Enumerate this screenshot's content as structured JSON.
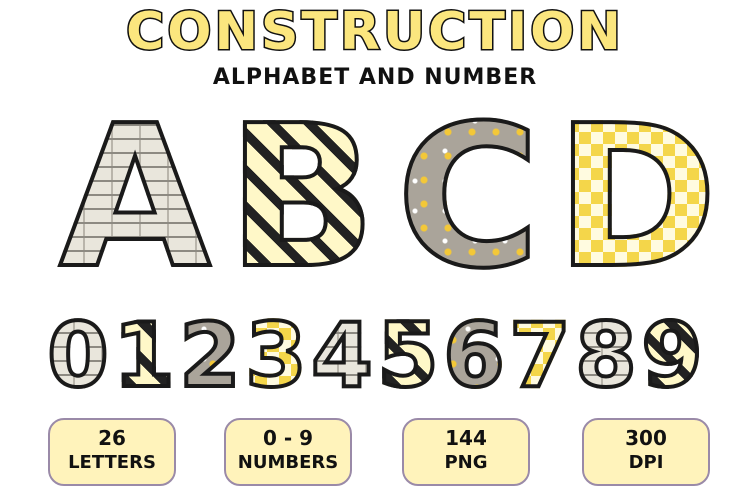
{
  "header": {
    "title": "CONSTRUCTION",
    "subtitle": "ALPHABET AND NUMBER"
  },
  "letters": [
    {
      "char": "A",
      "pattern": "gray-bricks"
    },
    {
      "char": "B",
      "pattern": "black-yellow-stripes"
    },
    {
      "char": "C",
      "pattern": "gray-construction-vehicles"
    },
    {
      "char": "D",
      "pattern": "yellow-checkerboard"
    }
  ],
  "digits": [
    "0",
    "1",
    "2",
    "3",
    "4",
    "5",
    "6",
    "7",
    "8",
    "9"
  ],
  "badges": [
    {
      "value": "26",
      "label": "LETTERS"
    },
    {
      "value": "0 - 9",
      "label": "NUMBERS"
    },
    {
      "value": "144",
      "label": "PNG"
    },
    {
      "value": "300",
      "label": "DPI"
    }
  ],
  "colors": {
    "title_fill": "#fbe67e",
    "badge_fill": "#fff3bb",
    "badge_border": "#9a8aa8"
  }
}
